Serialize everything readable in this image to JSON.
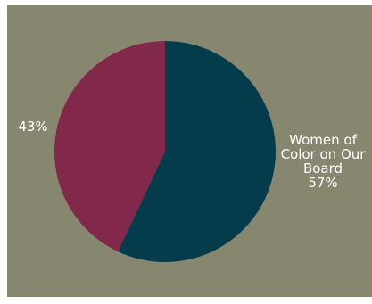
{
  "chart_data": {
    "type": "pie",
    "slices": [
      {
        "category_lines": [
          "Women of",
          "Color on Our",
          "Board"
        ],
        "value": 57,
        "label": "57%",
        "color": "#043c4c"
      },
      {
        "category_lines": [],
        "value": 43,
        "label": "43%",
        "color": "#82284a"
      }
    ],
    "background_color": "#87876f",
    "legend": "none"
  }
}
